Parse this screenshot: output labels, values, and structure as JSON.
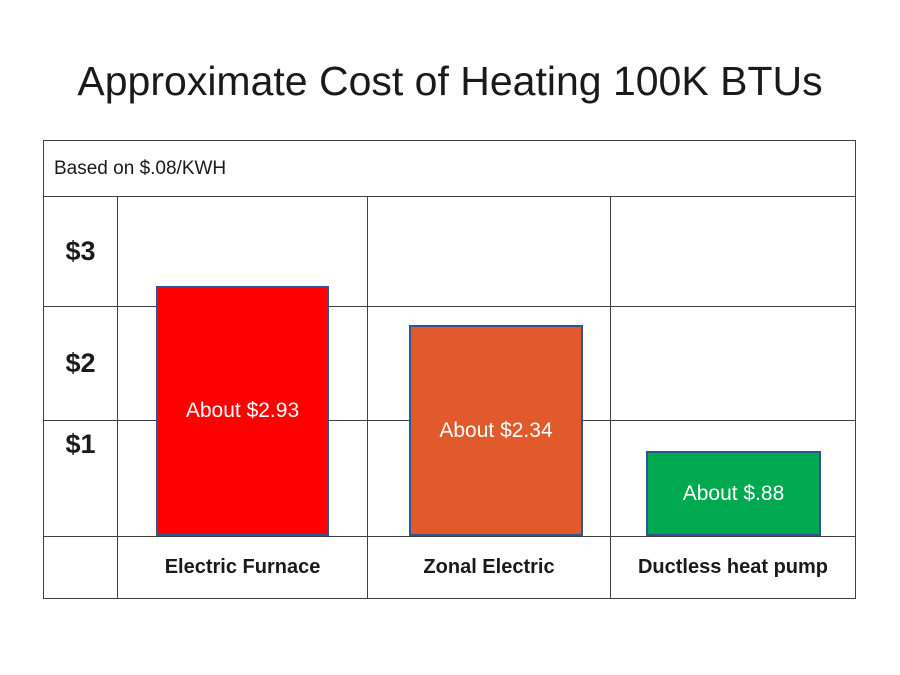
{
  "title": "Approximate Cost of Heating 100K BTUs",
  "chart_data": {
    "type": "bar",
    "title": "Approximate Cost of Heating 100K BTUs",
    "subtitle": "Based on $.08/KWH",
    "categories": [
      "Electric Furnace",
      "Zonal Electric",
      "Ductless heat pump"
    ],
    "values": [
      2.93,
      2.34,
      0.88
    ],
    "bar_labels": [
      "About $2.93",
      "About $2.34",
      "About $.88"
    ],
    "bar_colors": [
      "#fe0000",
      "#e05a2b",
      "#00a94f"
    ],
    "bar_border_color": "#2e5597",
    "bar_label_text_color": "#ffffff",
    "grid_line_color": "#404040",
    "y_ticks": [
      "$3",
      "$2",
      "$1"
    ],
    "xlabel": "",
    "ylabel": "",
    "ylim": [
      0,
      3.5
    ],
    "grid": true,
    "legend_position": "none"
  }
}
